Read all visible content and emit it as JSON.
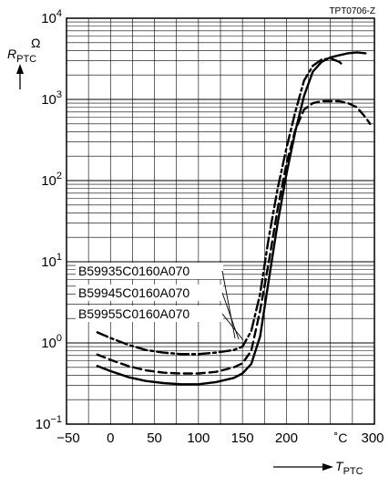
{
  "chart_data": {
    "type": "line",
    "figure_id": "TPT0706-Z",
    "y_axis": {
      "symbol": "R",
      "subscript": "PTC",
      "unit": "Ω",
      "scale": "log",
      "ylim": [
        0.1,
        10000
      ],
      "ticks": [
        {
          "base": "10",
          "exp": "−1"
        },
        {
          "base": "10",
          "exp": "0"
        },
        {
          "base": "10",
          "exp": "1"
        },
        {
          "base": "10",
          "exp": "2"
        },
        {
          "base": "10",
          "exp": "3"
        },
        {
          "base": "10",
          "exp": "4"
        }
      ],
      "tick_values": [
        0.1,
        1,
        10,
        100,
        1000,
        10000
      ]
    },
    "x_axis": {
      "symbol": "T",
      "subscript": "PTC",
      "unit": "˚C",
      "xlim": [
        -50,
        300
      ],
      "tick_labels": [
        "−50",
        "0",
        "50",
        "100",
        "150",
        "200",
        "300"
      ],
      "tick_values": [
        -50,
        0,
        50,
        100,
        150,
        200,
        300
      ]
    },
    "grid": true,
    "series": [
      {
        "name": "B59935C0160A070",
        "style": "dash-dot",
        "x": [
          -15,
          0,
          20,
          40,
          60,
          80,
          100,
          120,
          140,
          150,
          160,
          170,
          180,
          190,
          200,
          210,
          220,
          230,
          240,
          250,
          260,
          265
        ],
        "y": [
          1.35,
          1.15,
          0.95,
          0.82,
          0.76,
          0.73,
          0.73,
          0.76,
          0.82,
          0.9,
          1.4,
          4,
          20,
          80,
          250,
          700,
          1700,
          2600,
          3100,
          3200,
          2900,
          2600
        ]
      },
      {
        "name": "B59945C0160A070",
        "style": "solid",
        "x": [
          -15,
          0,
          20,
          40,
          60,
          80,
          100,
          120,
          140,
          150,
          160,
          170,
          180,
          190,
          200,
          210,
          220,
          230,
          240,
          250,
          260,
          270,
          280,
          290
        ],
        "y": [
          0.52,
          0.45,
          0.38,
          0.34,
          0.32,
          0.31,
          0.31,
          0.33,
          0.37,
          0.42,
          0.55,
          1.2,
          6,
          30,
          120,
          400,
          1100,
          2200,
          2900,
          3300,
          3500,
          3700,
          3800,
          3700
        ]
      },
      {
        "name": "B59955C0160A070",
        "style": "dashed",
        "x": [
          -15,
          0,
          20,
          40,
          60,
          80,
          100,
          120,
          140,
          150,
          160,
          170,
          180,
          190,
          200,
          210,
          220,
          230,
          240,
          250,
          260,
          270,
          280,
          290,
          295
        ],
        "y": [
          0.72,
          0.62,
          0.52,
          0.46,
          0.43,
          0.42,
          0.42,
          0.44,
          0.5,
          0.56,
          0.8,
          2.5,
          10,
          45,
          160,
          420,
          750,
          900,
          950,
          950,
          950,
          900,
          800,
          600,
          500
        ]
      }
    ]
  }
}
